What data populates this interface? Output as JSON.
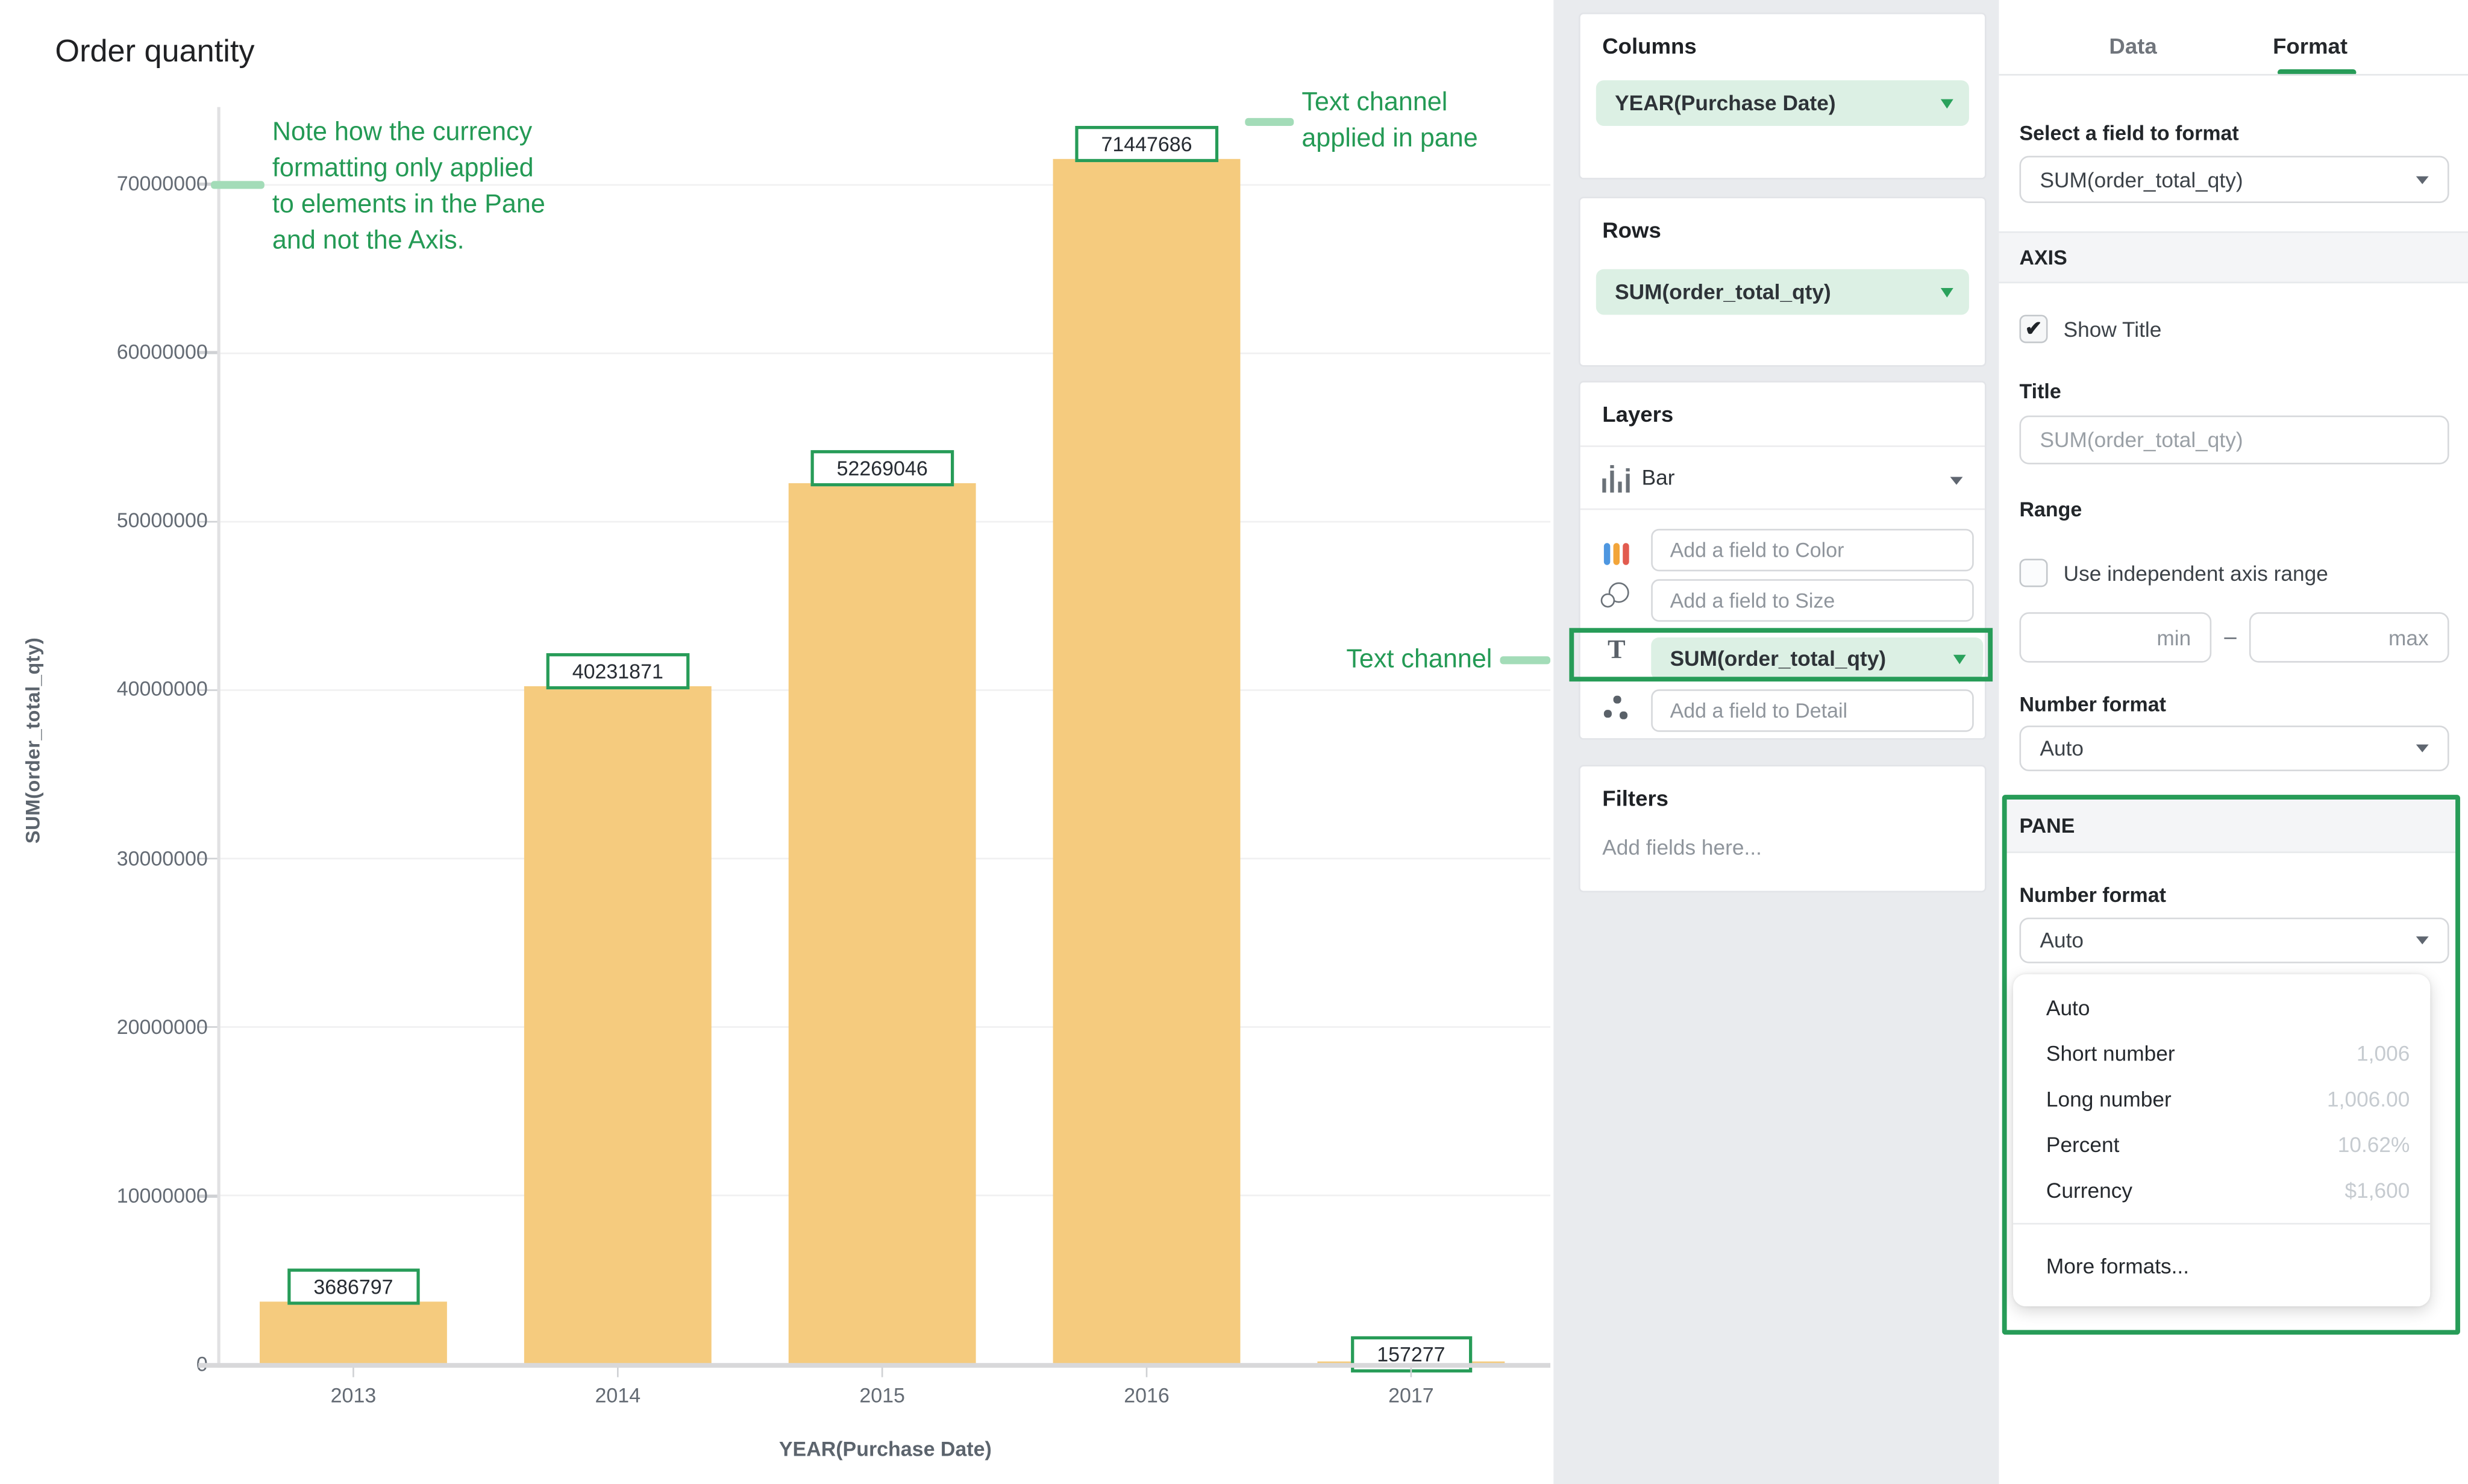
{
  "colors": {
    "accent_green": "#279C58",
    "light_green": "#A3DCB8",
    "bar_fill": "#F5CB7E",
    "pill_bg": "#DCF0E4",
    "shelf_bg": "#E9EBEE"
  },
  "chart_data": {
    "type": "bar",
    "title": "Order quantity",
    "categories": [
      "2013",
      "2014",
      "2015",
      "2016",
      "2017"
    ],
    "values": [
      3686797,
      40231871,
      52269046,
      71447686,
      157277
    ],
    "bar_labels": [
      "3686797",
      "40231871",
      "52269046",
      "71447686",
      "157277"
    ],
    "xlabel": "YEAR(Purchase Date)",
    "ylabel": "SUM(order_total_qty)",
    "ylim": [
      0,
      73500000
    ],
    "yticks": [
      0,
      10000000,
      20000000,
      30000000,
      40000000,
      50000000,
      60000000,
      70000000
    ],
    "ytick_labels": [
      "0",
      "10000000",
      "20000000",
      "30000000",
      "40000000",
      "50000000",
      "60000000",
      "70000000"
    ],
    "grid": true,
    "legend": "none",
    "bar_color": "#F5CB7E"
  },
  "annotations": {
    "note": "Note how the currency\nformatting only applied\nto elements in the Pane\nand not the Axis.",
    "text_channel_applied": "Text channel\napplied in pane",
    "text_channel_pointer": "Text channel"
  },
  "shelves": {
    "columns": {
      "header": "Columns",
      "pill": "YEAR(Purchase Date)"
    },
    "rows": {
      "header": "Rows",
      "pill": "SUM(order_total_qty)"
    },
    "layers": {
      "header": "Layers",
      "layer_type": "Bar",
      "channels": [
        {
          "icon": "color-icon",
          "placeholder": "Add a field to Color"
        },
        {
          "icon": "size-icon",
          "placeholder": "Add a field to Size"
        },
        {
          "icon": "text-icon",
          "value": "SUM(order_total_qty)"
        },
        {
          "icon": "detail-icon",
          "placeholder": "Add a field to Detail"
        }
      ]
    },
    "filters": {
      "header": "Filters",
      "placeholder": "Add fields here..."
    }
  },
  "format_panel": {
    "tabs": [
      {
        "label": "Data",
        "active": false
      },
      {
        "label": "Format",
        "active": true
      }
    ],
    "field_label": "Select a field to format",
    "field_value": "SUM(order_total_qty)",
    "axis_section": {
      "header": "AXIS",
      "show_title_label": "Show Title",
      "show_title_checked": true,
      "check_glyph": "✔",
      "title_label": "Title",
      "title_placeholder": "SUM(order_total_qty)",
      "range_label": "Range",
      "independent_label": "Use independent axis range",
      "independent_checked": false,
      "min_placeholder": "min",
      "max_placeholder": "max",
      "range_separator": "–",
      "number_format_label": "Number format",
      "number_format_value": "Auto"
    },
    "pane_section": {
      "header": "PANE",
      "number_format_label": "Number format",
      "number_format_value": "Auto",
      "menu": {
        "items": [
          {
            "label": "Auto",
            "example": ""
          },
          {
            "label": "Short number",
            "example": "1,006"
          },
          {
            "label": "Long number",
            "example": "1,006.00"
          },
          {
            "label": "Percent",
            "example": "10.62%"
          },
          {
            "label": "Currency",
            "example": "$1,600"
          }
        ],
        "footer": "More formats..."
      }
    }
  }
}
